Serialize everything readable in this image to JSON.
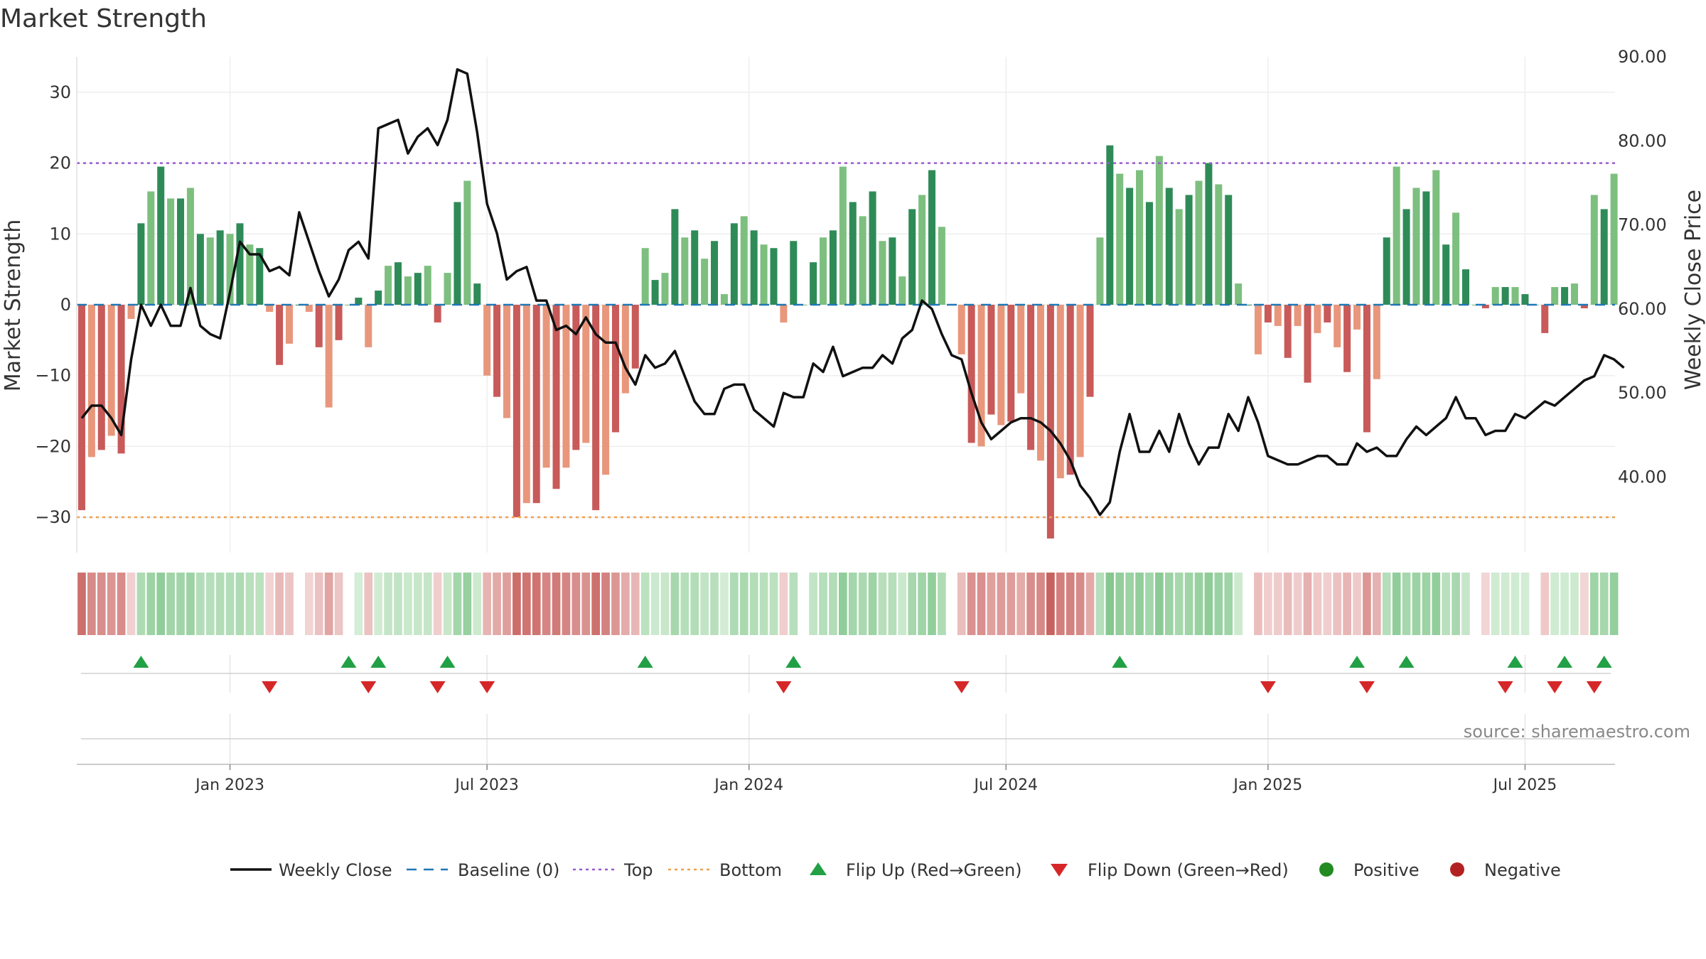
{
  "title": "Market Strength",
  "source": "source: sharemaestro.com",
  "colors": {
    "pos_strong": "#2e8b57",
    "pos_light": "#7dbf7f",
    "neg_strong": "#c85a5a",
    "neg_light": "#e8977c",
    "top_line": "#9b59d0",
    "bottom_line": "#f0a050",
    "baseline": "#1f77b4",
    "close_line": "#111111",
    "flip_up": "#22a045",
    "flip_down": "#d62728",
    "positive": "#228b22",
    "negative": "#b22222"
  },
  "chart_data": {
    "type": "bar",
    "y_left_label": "Market Strength",
    "y_right_label": "Weekly Close Price",
    "y_left_ticks": [
      "30",
      "20",
      "10",
      "0",
      "−10",
      "−20",
      "−30"
    ],
    "y_right_ticks": [
      "90.00",
      "80.00",
      "70.00",
      "60.00",
      "50.00",
      "40.00"
    ],
    "ylim_left": [
      -35,
      35
    ],
    "ylim_right": [
      31,
      90
    ],
    "x_ticks": [
      "Jan 2023",
      "Jul 2023",
      "Jan 2024",
      "Jul 2024",
      "Jan 2025",
      "Jul 2025"
    ],
    "x_tick_weeks": [
      15,
      41,
      67.5,
      93.5,
      120,
      146
    ],
    "top_level": 20,
    "bottom_level": -30,
    "strength": [
      -29,
      -21.5,
      -20.5,
      -18.5,
      -21,
      -2,
      11.5,
      16,
      19.5,
      15,
      15,
      16.5,
      10,
      9.5,
      10.5,
      10,
      11.5,
      8.5,
      8,
      -1,
      -8.5,
      -5.5,
      0,
      -1,
      -6,
      -14.5,
      -5,
      0,
      1,
      -6,
      2,
      5.5,
      6,
      4,
      4.5,
      5.5,
      -2.5,
      4.5,
      14.5,
      17.5,
      3,
      -10,
      -13,
      -16,
      -30,
      -28,
      -28,
      -23,
      -26,
      -23,
      -20.5,
      -19.5,
      -29,
      -24,
      -18,
      -12.5,
      -9,
      8,
      3.5,
      4.5,
      13.5,
      9.5,
      10.5,
      6.5,
      9,
      1.5,
      11.5,
      12.5,
      10.5,
      8.5,
      8,
      -2.5,
      9,
      0,
      6,
      9.5,
      10.5,
      19.5,
      14.5,
      12.5,
      16,
      9,
      9.5,
      4,
      13.5,
      15.5,
      19,
      11,
      0,
      -7,
      -19.5,
      -20,
      -15.5,
      -17,
      -16.5,
      -12.5,
      -20.5,
      -22,
      -33,
      -24.5,
      -24,
      -21.5,
      -13,
      9.5,
      22.5,
      18.5,
      16.5,
      19,
      14.5,
      21,
      16.5,
      13.5,
      15.5,
      17.5,
      20,
      17,
      15.5,
      3,
      0,
      -7,
      -2.5,
      -3,
      -7.5,
      -3,
      -11,
      -4,
      -2.5,
      -6,
      -9.5,
      -3.5,
      -18,
      -10.5,
      9.5,
      19.5,
      13.5,
      16.5,
      16,
      19,
      8.5,
      13,
      5,
      0,
      -0.5,
      2.5,
      2.5,
      2.5,
      1.5,
      0,
      -4,
      2.5,
      2.5,
      3,
      -0.5,
      15.5,
      13.5,
      18.5
    ],
    "weekly_close": [
      47,
      48.5,
      48.5,
      47,
      45,
      54,
      60.5,
      58,
      60.5,
      58,
      58,
      62.5,
      58,
      57,
      56.5,
      62,
      68,
      66.5,
      66.5,
      64.5,
      65,
      64,
      71.5,
      68,
      64.5,
      61.5,
      63.5,
      67,
      68,
      66,
      81.5,
      82,
      82.5,
      78.5,
      80.5,
      81.5,
      79.5,
      82.5,
      88.5,
      88,
      81,
      72.5,
      69,
      63.5,
      64.5,
      65,
      61,
      61,
      57.5,
      58,
      57,
      59,
      57,
      56,
      56,
      53,
      51,
      54.5,
      53,
      53.5,
      55,
      52,
      49,
      47.5,
      47.5,
      50.5,
      51,
      51,
      48,
      47,
      46,
      50,
      49.5,
      49.5,
      53.5,
      52.5,
      55.5,
      52,
      52.5,
      53,
      53,
      54.5,
      53.5,
      56.5,
      57.5,
      61,
      60,
      57,
      54.5,
      54,
      50,
      46.5,
      44.5,
      45.5,
      46.5,
      47,
      47,
      46.5,
      45.5,
      44,
      42,
      39,
      37.5,
      35.5,
      37,
      43,
      47.5,
      43,
      43,
      45.5,
      43,
      47.5,
      44,
      41.5,
      43.5,
      43.5,
      47.5,
      45.5,
      49.5,
      46.5,
      42.5,
      42,
      41.5,
      41.5,
      42,
      42.5,
      42.5,
      41.5,
      41.5,
      44,
      43,
      43.5,
      42.5,
      42.5,
      44.5,
      46,
      45,
      46,
      47,
      49.5,
      47,
      47,
      45,
      45.5,
      45.5,
      47.5,
      47,
      48,
      49,
      48.5,
      49.5,
      50.5,
      51.5,
      52,
      54.5,
      54,
      53
    ],
    "flip_up_weeks": [
      6,
      27,
      30,
      37,
      57,
      72,
      105,
      129,
      134,
      145,
      150,
      154
    ],
    "flip_down_weeks": [
      19,
      29,
      36,
      41,
      71,
      89,
      120,
      130,
      144,
      149,
      153
    ],
    "legend": [
      "Weekly Close",
      "Baseline (0)",
      "Top",
      "Bottom",
      "Flip Up (Red→Green)",
      "Flip Down (Green→Red)",
      "Positive",
      "Negative"
    ]
  }
}
